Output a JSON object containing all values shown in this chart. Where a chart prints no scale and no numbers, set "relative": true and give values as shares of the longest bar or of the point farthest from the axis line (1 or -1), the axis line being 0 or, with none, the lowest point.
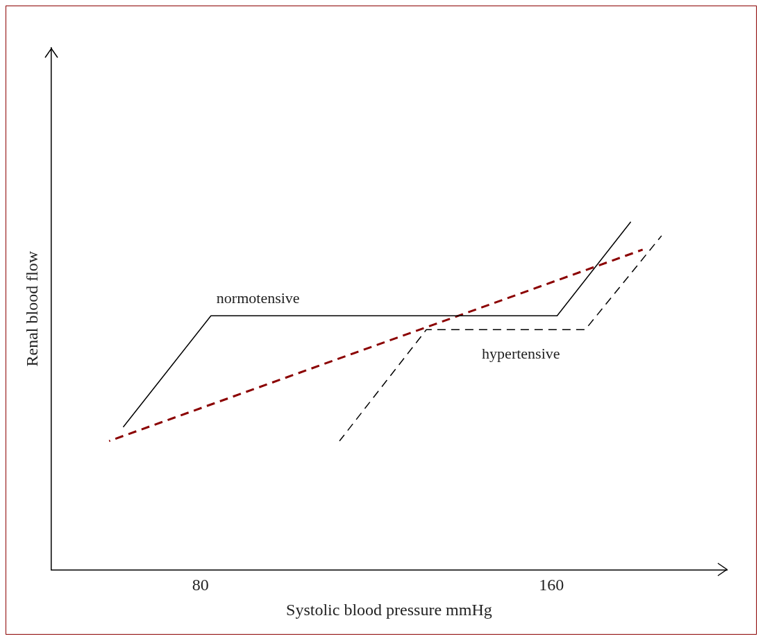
{
  "chart_data": {
    "type": "line",
    "xlabel": "Systolic blood pressure mmHg",
    "ylabel": "Renal blood flow",
    "relative": true,
    "xlim": [
      46,
      200
    ],
    "xticks": [
      80,
      160
    ],
    "legend": false,
    "grid": false,
    "marker": "none",
    "series": [
      {
        "name": "normotensive",
        "color": "#000000",
        "line_style": "solid",
        "x": [
          62.4,
          82.4,
          161.3,
          178.1
        ],
        "values": [
          0.41,
          0.73,
          0.73,
          1
        ]
      },
      {
        "name": "hypertensive",
        "color": "#000000",
        "line_style": "dashed",
        "x": [
          111.7,
          131.5,
          167.7,
          185.1
        ],
        "values": [
          0.37,
          0.69,
          0.69,
          0.96
        ]
      },
      {
        "color": "#8b0000",
        "line_style": "dashed",
        "x": [
          59.2,
          180.8
        ],
        "values": [
          0.37,
          0.92
        ]
      }
    ]
  }
}
